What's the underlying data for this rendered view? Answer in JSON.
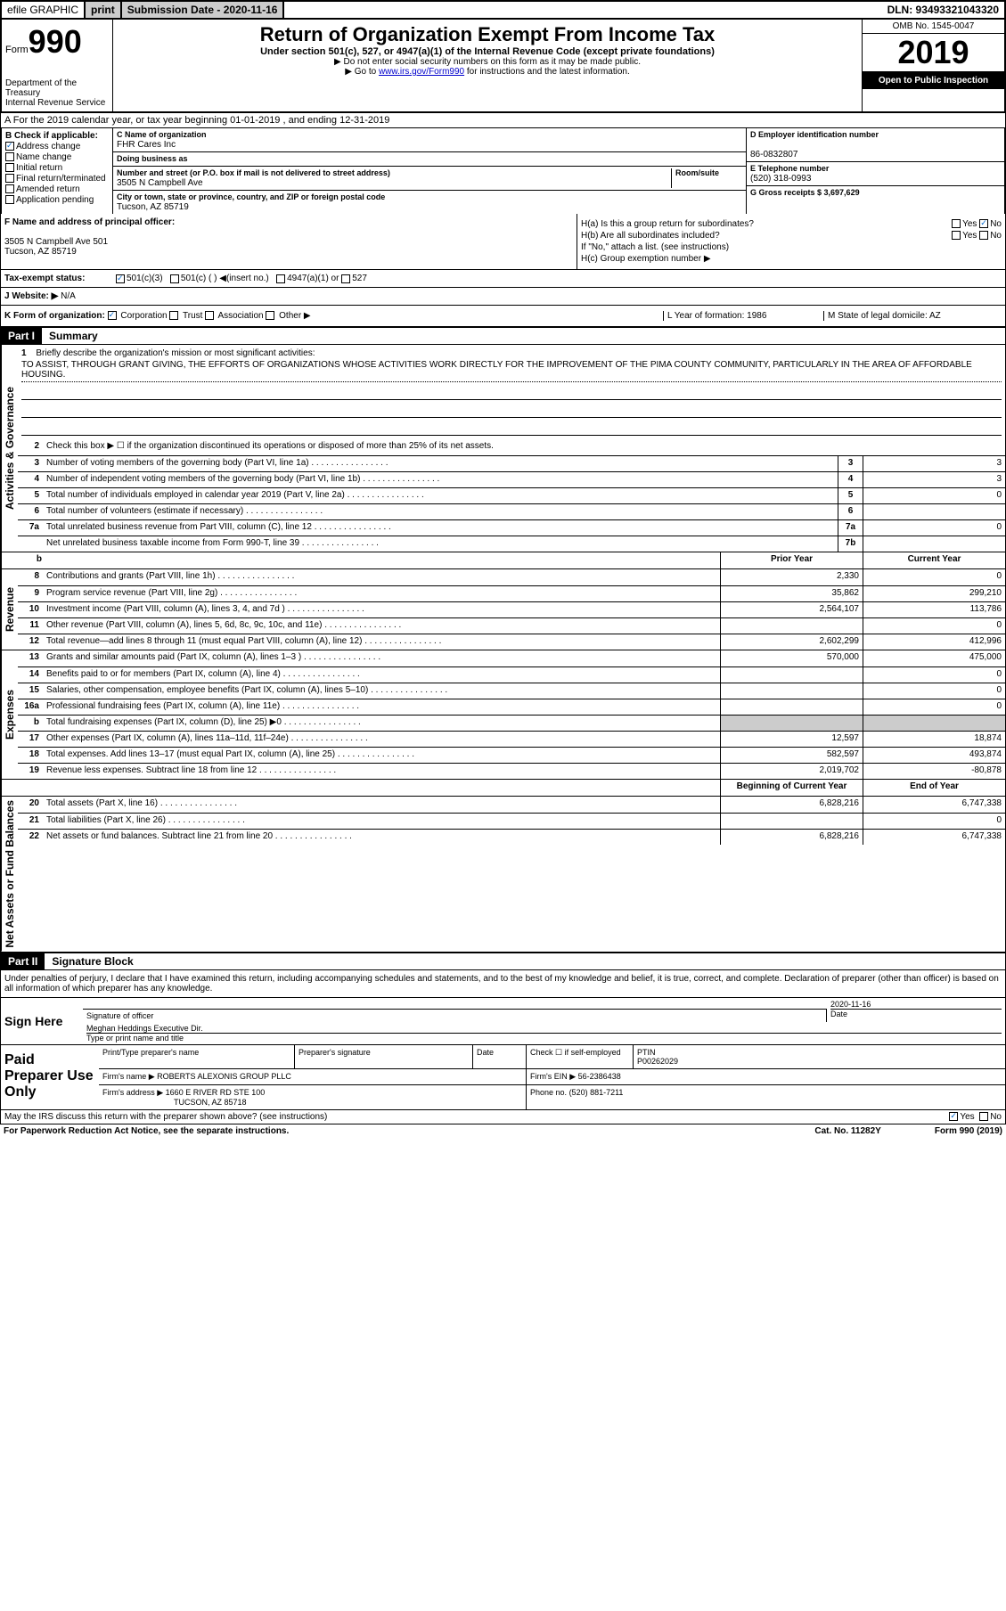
{
  "topbar": {
    "efile_label": "efile GRAPHIC",
    "print_btn": "print",
    "sub_date_label": "Submission Date - 2020-11-16",
    "dln": "DLN: 93493321043320"
  },
  "header": {
    "form_prefix": "Form",
    "form_number": "990",
    "dept": "Department of the Treasury",
    "irs": "Internal Revenue Service",
    "title": "Return of Organization Exempt From Income Tax",
    "subtitle": "Under section 501(c), 527, or 4947(a)(1) of the Internal Revenue Code (except private foundations)",
    "note1": "▶ Do not enter social security numbers on this form as it may be made public.",
    "note2_pre": "▶ Go to ",
    "note2_link": "www.irs.gov/Form990",
    "note2_post": " for instructions and the latest information.",
    "omb": "OMB No. 1545-0047",
    "year": "2019",
    "open": "Open to Public Inspection"
  },
  "line_a": "A For the 2019 calendar year, or tax year beginning 01-01-2019    , and ending 12-31-2019",
  "col_b": {
    "heading": "B Check if applicable:",
    "addr_change": "Address change",
    "name_change": "Name change",
    "initial": "Initial return",
    "final": "Final return/terminated",
    "amended": "Amended return",
    "app_pending": "Application pending"
  },
  "col_c": {
    "name_label": "C Name of organization",
    "name": "FHR Cares Inc",
    "dba_label": "Doing business as",
    "dba": "",
    "addr_label": "Number and street (or P.O. box if mail is not delivered to street address)",
    "room_label": "Room/suite",
    "addr": "3505 N Campbell Ave",
    "city_label": "City or town, state or province, country, and ZIP or foreign postal code",
    "city": "Tucson, AZ  85719"
  },
  "col_d": {
    "ein_label": "D Employer identification number",
    "ein": "86-0832807",
    "phone_label": "E Telephone number",
    "phone": "(520) 318-0993",
    "gross_label": "G Gross receipts $ 3,697,629"
  },
  "row_f": {
    "label": "F  Name and address of principal officer:",
    "addr1": "3505 N Campbell Ave 501",
    "addr2": "Tucson, AZ  85719",
    "ha": "H(a)  Is this a group return for subordinates?",
    "ha_yes": "Yes",
    "ha_no": "No",
    "hb": "H(b)  Are all subordinates included?",
    "hb_yes": "Yes",
    "hb_no": "No",
    "hb_note": "If \"No,\" attach a list. (see instructions)",
    "hc": "H(c)  Group exemption number ▶"
  },
  "tax_status": {
    "label": "Tax-exempt status:",
    "opt1": "501(c)(3)",
    "opt2": "501(c) (   ) ◀(insert no.)",
    "opt3": "4947(a)(1) or",
    "opt4": "527"
  },
  "website": {
    "label": "J  Website: ▶",
    "value": "N/A"
  },
  "row_k": {
    "label": "K Form of organization:",
    "corp": "Corporation",
    "trust": "Trust",
    "assoc": "Association",
    "other": "Other ▶",
    "l_label": "L Year of formation: 1986",
    "m_label": "M State of legal domicile: AZ"
  },
  "part1": {
    "label": "Part I",
    "title": "Summary"
  },
  "mission": {
    "num": "1",
    "label": "Briefly describe the organization's mission or most significant activities:",
    "text": "TO ASSIST, THROUGH GRANT GIVING, THE EFFORTS OF ORGANIZATIONS WHOSE ACTIVITIES WORK DIRECTLY FOR THE IMPROVEMENT OF THE PIMA COUNTY COMMUNITY, PARTICULARLY IN THE AREA OF AFFORDABLE HOUSING."
  },
  "gov_lines": [
    {
      "n": "2",
      "d": "Check this box ▶ ☐  if the organization discontinued its operations or disposed of more than 25% of its net assets."
    },
    {
      "n": "3",
      "d": "Number of voting members of the governing body (Part VI, line 1a)",
      "box": "3",
      "v": "3"
    },
    {
      "n": "4",
      "d": "Number of independent voting members of the governing body (Part VI, line 1b)",
      "box": "4",
      "v": "3"
    },
    {
      "n": "5",
      "d": "Total number of individuals employed in calendar year 2019 (Part V, line 2a)",
      "box": "5",
      "v": "0"
    },
    {
      "n": "6",
      "d": "Total number of volunteers (estimate if necessary)",
      "box": "6",
      "v": ""
    },
    {
      "n": "7a",
      "d": "Total unrelated business revenue from Part VIII, column (C), line 12",
      "box": "7a",
      "v": "0"
    },
    {
      "n": "",
      "d": "Net unrelated business taxable income from Form 990-T, line 39",
      "box": "7b",
      "v": ""
    }
  ],
  "rev_hdr": {
    "prior": "Prior Year",
    "curr": "Current Year"
  },
  "rev_lines": [
    {
      "n": "8",
      "d": "Contributions and grants (Part VIII, line 1h)",
      "p": "2,330",
      "c": "0"
    },
    {
      "n": "9",
      "d": "Program service revenue (Part VIII, line 2g)",
      "p": "35,862",
      "c": "299,210"
    },
    {
      "n": "10",
      "d": "Investment income (Part VIII, column (A), lines 3, 4, and 7d )",
      "p": "2,564,107",
      "c": "113,786"
    },
    {
      "n": "11",
      "d": "Other revenue (Part VIII, column (A), lines 5, 6d, 8c, 9c, 10c, and 11e)",
      "p": "",
      "c": "0"
    },
    {
      "n": "12",
      "d": "Total revenue—add lines 8 through 11 (must equal Part VIII, column (A), line 12)",
      "p": "2,602,299",
      "c": "412,996"
    }
  ],
  "exp_lines": [
    {
      "n": "13",
      "d": "Grants and similar amounts paid (Part IX, column (A), lines 1–3 )",
      "p": "570,000",
      "c": "475,000"
    },
    {
      "n": "14",
      "d": "Benefits paid to or for members (Part IX, column (A), line 4)",
      "p": "",
      "c": "0"
    },
    {
      "n": "15",
      "d": "Salaries, other compensation, employee benefits (Part IX, column (A), lines 5–10)",
      "p": "",
      "c": "0"
    },
    {
      "n": "16a",
      "d": "Professional fundraising fees (Part IX, column (A), line 11e)",
      "p": "",
      "c": "0"
    },
    {
      "n": "b",
      "d": "Total fundraising expenses (Part IX, column (D), line 25) ▶0",
      "p": "shade",
      "c": "shade"
    },
    {
      "n": "17",
      "d": "Other expenses (Part IX, column (A), lines 11a–11d, 11f–24e)",
      "p": "12,597",
      "c": "18,874"
    },
    {
      "n": "18",
      "d": "Total expenses. Add lines 13–17 (must equal Part IX, column (A), line 25)",
      "p": "582,597",
      "c": "493,874"
    },
    {
      "n": "19",
      "d": "Revenue less expenses. Subtract line 18 from line 12",
      "p": "2,019,702",
      "c": "-80,878"
    }
  ],
  "net_hdr": {
    "beg": "Beginning of Current Year",
    "end": "End of Year"
  },
  "net_lines": [
    {
      "n": "20",
      "d": "Total assets (Part X, line 16)",
      "p": "6,828,216",
      "c": "6,747,338"
    },
    {
      "n": "21",
      "d": "Total liabilities (Part X, line 26)",
      "p": "",
      "c": "0"
    },
    {
      "n": "22",
      "d": "Net assets or fund balances. Subtract line 21 from line 20",
      "p": "6,828,216",
      "c": "6,747,338"
    }
  ],
  "part2": {
    "label": "Part II",
    "title": "Signature Block"
  },
  "sig_intro": "Under penalties of perjury, I declare that I have examined this return, including accompanying schedules and statements, and to the best of my knowledge and belief, it is true, correct, and complete. Declaration of preparer (other than officer) is based on all information of which preparer has any knowledge.",
  "sign": {
    "here": "Sign Here",
    "sig_label": "Signature of officer",
    "date": "2020-11-16",
    "date_label": "Date",
    "name": "Meghan Heddings Executive Dir.",
    "name_label": "Type or print name and title"
  },
  "prep": {
    "label": "Paid Preparer Use Only",
    "name_label": "Print/Type preparer's name",
    "sig_label": "Preparer's signature",
    "date_label": "Date",
    "check_label": "Check ☐ if self-employed",
    "ptin_label": "PTIN",
    "ptin": "P00262029",
    "firm_name_label": "Firm's name      ▶",
    "firm_name": "ROBERTS ALEXONIS GROUP PLLC",
    "firm_ein_label": "Firm's EIN ▶",
    "firm_ein": "56-2386438",
    "firm_addr_label": "Firm's address ▶",
    "firm_addr1": "1660 E RIVER RD STE 100",
    "firm_addr2": "TUCSON, AZ  85718",
    "phone_label": "Phone no.",
    "phone": "(520) 881-7211"
  },
  "discuss": {
    "q": "May the IRS discuss this return with the preparer shown above? (see instructions)",
    "yes": "Yes",
    "no": "No"
  },
  "footer": {
    "left": "For Paperwork Reduction Act Notice, see the separate instructions.",
    "mid": "Cat. No. 11282Y",
    "right": "Form 990 (2019)"
  },
  "side_labels": {
    "gov": "Activities & Governance",
    "rev": "Revenue",
    "exp": "Expenses",
    "net": "Net Assets or Fund Balances"
  }
}
